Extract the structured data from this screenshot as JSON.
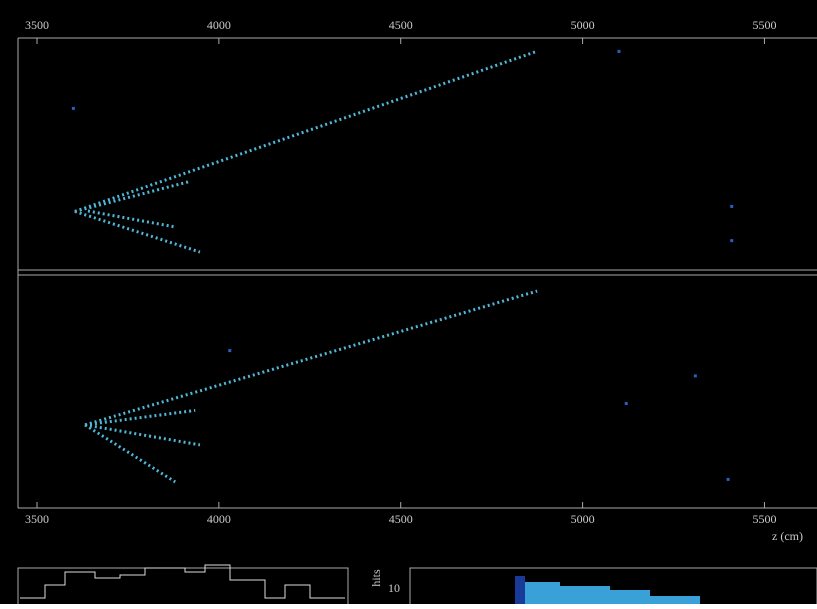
{
  "event_display": {
    "z_axis": {
      "label": "z (cm)",
      "lim": [
        3500,
        5650
      ],
      "ticks": [
        3500,
        4000,
        4500,
        5000,
        5500
      ]
    },
    "views": [
      {
        "ylim": [
          0,
          1
        ],
        "tracks": [
          {
            "z": [
              3604,
              4870
            ],
            "y": [
              0.248,
              0.948
            ]
          },
          {
            "z": [
              3604,
              3948
            ],
            "y": [
              0.248,
              0.07
            ]
          },
          {
            "z": [
              3604,
              3921
            ],
            "y": [
              0.248,
              0.38
            ]
          },
          {
            "z": [
              3640,
              3880
            ],
            "y": [
              0.25,
              0.18
            ]
          }
        ],
        "hits": [
          {
            "z": 3600,
            "y": 0.7
          },
          {
            "z": 5100,
            "y": 0.95
          },
          {
            "z": 5410,
            "y": 0.27
          },
          {
            "z": 5410,
            "y": 0.12
          }
        ]
      },
      {
        "ylim": [
          0,
          1
        ],
        "tracks": [
          {
            "z": [
              3632,
              4875
            ],
            "y": [
              0.357,
              0.939
            ]
          },
          {
            "z": [
              3632,
              3880
            ],
            "y": [
              0.357,
              0.109
            ]
          },
          {
            "z": [
              3632,
              3948
            ],
            "y": [
              0.357,
              0.27
            ]
          },
          {
            "z": [
              3632,
              3935
            ],
            "y": [
              0.357,
              0.42
            ]
          }
        ],
        "hits": [
          {
            "z": 4030,
            "y": 0.68
          },
          {
            "z": 5310,
            "y": 0.57
          },
          {
            "z": 5120,
            "y": 0.45
          },
          {
            "z": 5400,
            "y": 0.12
          }
        ]
      }
    ],
    "histogram": {
      "y_label": "hits",
      "y_tick": 10
    }
  }
}
